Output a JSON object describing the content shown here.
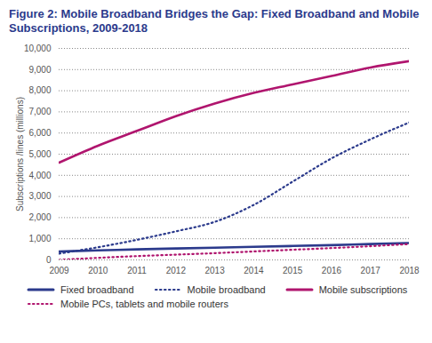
{
  "chart_data": {
    "type": "line",
    "title": "Figure 2: Mobile Broadband Bridges the Gap: Fixed Broadband and Mobile Subscriptions, 2009-2018",
    "y_label": "Subscriptions /lines (millions)",
    "x": [
      2009,
      2010,
      2011,
      2012,
      2013,
      2014,
      2015,
      2016,
      2017,
      2018
    ],
    "series": [
      {
        "name": "Fixed broadband",
        "color": "#2b3a8c",
        "line_style": "solid",
        "values": [
          400,
          450,
          500,
          540,
          580,
          620,
          660,
          700,
          750,
          800
        ]
      },
      {
        "name": "Mobile broadband",
        "color": "#2b3a8c",
        "line_style": "dotted",
        "values": [
          300,
          600,
          950,
          1350,
          1800,
          2600,
          3700,
          4800,
          5700,
          6500
        ]
      },
      {
        "name": "Mobile subscriptions",
        "color": "#b0156e",
        "line_style": "solid",
        "values": [
          4600,
          5400,
          6100,
          6800,
          7400,
          7900,
          8300,
          8700,
          9100,
          9400
        ]
      },
      {
        "name": "Mobile PCs, tablets and mobile routers",
        "color": "#b0156e",
        "line_style": "dotted",
        "values": [
          0,
          100,
          180,
          250,
          320,
          400,
          480,
          560,
          650,
          750
        ]
      }
    ],
    "xlim": [
      2009,
      2018
    ],
    "xticks": [
      2009,
      2010,
      2011,
      2012,
      2013,
      2014,
      2015,
      2016,
      2017,
      2018
    ],
    "ylim": [
      0,
      10000
    ],
    "yticks": [
      0,
      {
        "value": 1000,
        "label": "1,000"
      },
      {
        "value": 2000,
        "label": "2,000"
      },
      {
        "value": 3000,
        "label": "3,000"
      },
      {
        "value": 4000,
        "label": "4,000"
      },
      {
        "value": 5000,
        "label": "5,000"
      },
      {
        "value": 6000,
        "label": "6,000"
      },
      {
        "value": 7000,
        "label": "7,000"
      },
      {
        "value": 8000,
        "label": "8,000"
      },
      {
        "value": 9000,
        "label": "9,000"
      },
      {
        "value": 10000,
        "label": "10,000"
      }
    ],
    "grid": true,
    "legend": "bottom"
  }
}
